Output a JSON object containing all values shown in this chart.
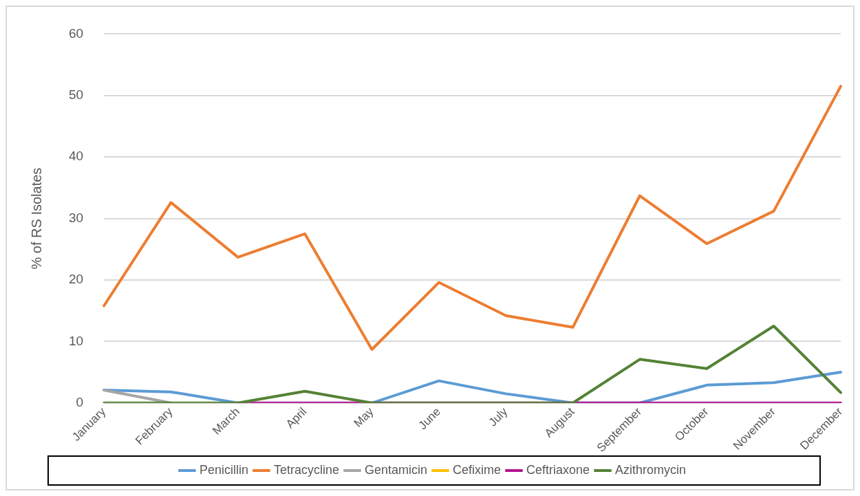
{
  "chart_data": {
    "type": "line",
    "ylabel": "% of RS Isolates",
    "categories": [
      "January",
      "February",
      "March",
      "April",
      "May",
      "June",
      "July",
      "August",
      "September",
      "October",
      "November",
      "December"
    ],
    "series": [
      {
        "name": "Penicillin",
        "color": "#5b9bd5",
        "values": [
          2.1,
          1.8,
          0,
          null,
          0,
          3.6,
          1.5,
          0,
          0,
          2.9,
          3.3,
          5.0
        ]
      },
      {
        "name": "Tetracycline",
        "color": "#ed7d31",
        "values": [
          15.8,
          32.6,
          23.7,
          27.5,
          8.7,
          19.6,
          14.2,
          12.3,
          33.7,
          25.9,
          31.2,
          51.5
        ]
      },
      {
        "name": "Gentamicin",
        "color": "#a5a5a5",
        "values": [
          2.1,
          0,
          null,
          null,
          null,
          null,
          null,
          null,
          null,
          null,
          null,
          null
        ]
      },
      {
        "name": "Cefixime",
        "color": "#ffc000",
        "values": [
          null,
          null,
          null,
          null,
          null,
          null,
          null,
          null,
          null,
          null,
          null,
          null
        ]
      },
      {
        "name": "Ceftriaxone",
        "color": "#b5128f",
        "values": [
          null,
          null,
          0,
          0,
          0,
          0,
          0,
          0,
          0,
          0,
          0,
          0
        ]
      },
      {
        "name": "Azithromycin",
        "color": "#548235",
        "values": [
          0,
          0,
          0,
          1.9,
          0,
          0,
          0,
          0,
          7.1,
          5.6,
          12.5,
          1.7
        ]
      }
    ],
    "ylim": [
      0,
      60
    ],
    "yticks": [
      0,
      10,
      20,
      30,
      40,
      50,
      60
    ],
    "grid": "y",
    "legend": "bottom",
    "marker": "none",
    "line_style": "solid"
  }
}
